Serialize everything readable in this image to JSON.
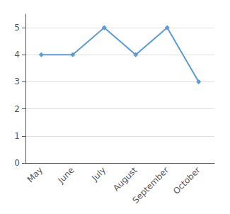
{
  "chart_data": {
    "type": "line",
    "categories": [
      "May",
      "June",
      "July",
      "August",
      "September",
      "October"
    ],
    "values": [
      4,
      4,
      5,
      4,
      5,
      3
    ],
    "color": "#5B9BD5",
    "marker": "diamond",
    "ylim": [
      0,
      5.5
    ],
    "yticks": [
      0,
      1,
      2,
      3,
      4,
      5
    ],
    "grid": true
  }
}
